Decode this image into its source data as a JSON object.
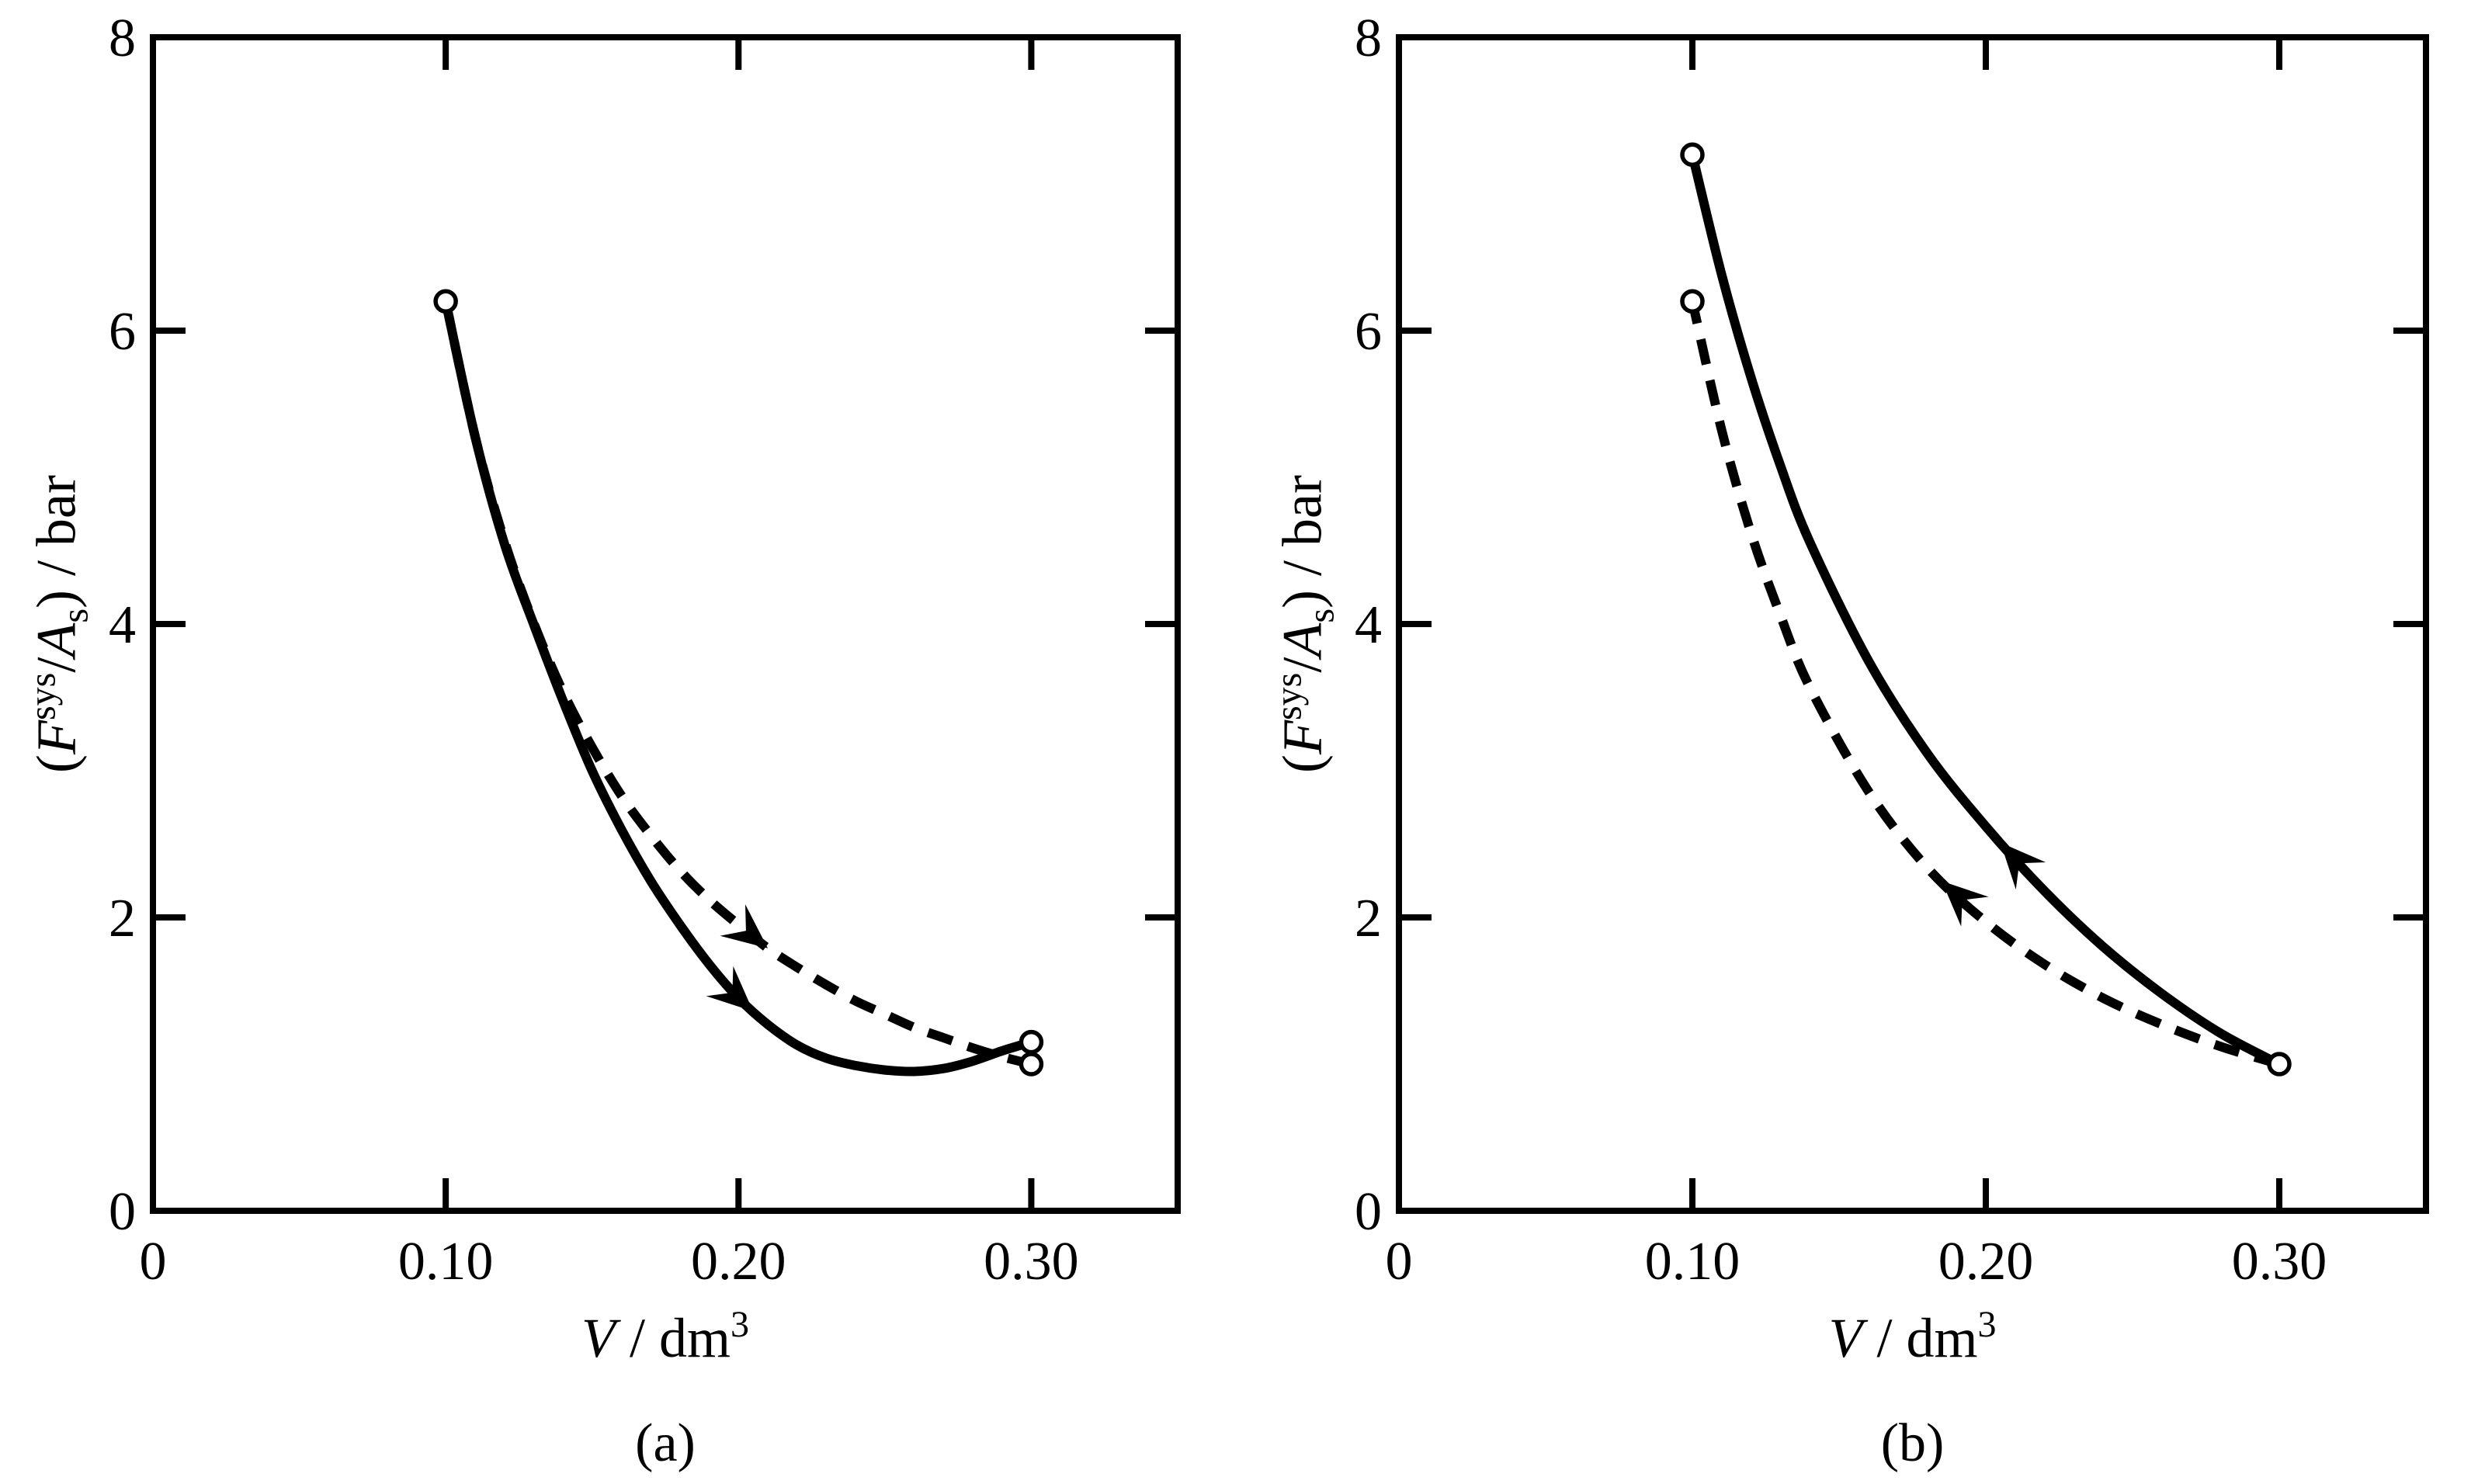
{
  "figure": {
    "background": "#ffffff",
    "ink": "#000000",
    "marker_style": "open-circle",
    "description_visible_text_only": true
  },
  "chart_data": [
    {
      "type": "line",
      "panel_label": "(a)",
      "xlabel_parts": [
        {
          "t": "V",
          "s": "i"
        },
        {
          "t": " / dm",
          "s": "n"
        },
        {
          "t": "3",
          "s": "sup"
        }
      ],
      "ylabel_parts": [
        {
          "t": "(",
          "s": "n"
        },
        {
          "t": "F",
          "s": "i"
        },
        {
          "t": "sys",
          "s": "sup"
        },
        {
          "t": "/",
          "s": "n"
        },
        {
          "t": "A",
          "s": "i"
        },
        {
          "t": "s",
          "s": "sub"
        },
        {
          "t": ") / bar",
          "s": "n"
        }
      ],
      "xlim": [
        0,
        0.35
      ],
      "ylim": [
        0,
        8
      ],
      "grid": false,
      "legend": "none",
      "xticks": [
        {
          "v": 0,
          "label": "0",
          "tick": false
        },
        {
          "v": 0.1,
          "label": "0.10",
          "tick": true
        },
        {
          "v": 0.2,
          "label": "0.20",
          "tick": true
        },
        {
          "v": 0.3,
          "label": "0.30",
          "tick": true
        }
      ],
      "yticks": [
        {
          "v": 0,
          "label": "0",
          "tick": false
        },
        {
          "v": 2,
          "label": "2",
          "tick": true
        },
        {
          "v": 4,
          "label": "4",
          "tick": true
        },
        {
          "v": 6,
          "label": "6",
          "tick": true
        },
        {
          "v": 8,
          "label": "8",
          "tick": false
        }
      ],
      "series": [
        {
          "name": "solid-path",
          "style": "solid",
          "arrow_v": 0.205,
          "x": [
            0.1,
            0.11,
            0.12,
            0.13,
            0.14,
            0.15,
            0.16,
            0.17,
            0.18,
            0.19,
            0.2,
            0.21,
            0.22,
            0.23,
            0.24,
            0.25,
            0.26,
            0.27,
            0.28,
            0.29,
            0.3
          ],
          "y": [
            6.2,
            5.28,
            4.55,
            4.0,
            3.48,
            3.0,
            2.6,
            2.25,
            1.95,
            1.68,
            1.45,
            1.27,
            1.13,
            1.04,
            0.99,
            0.96,
            0.95,
            0.97,
            1.02,
            1.09,
            1.15
          ]
        },
        {
          "name": "dashed-path",
          "style": "dashed",
          "arrow_v": 0.21,
          "x": [
            0.1,
            0.11,
            0.12,
            0.13,
            0.14,
            0.15,
            0.16,
            0.17,
            0.18,
            0.19,
            0.2,
            0.21,
            0.22,
            0.23,
            0.24,
            0.25,
            0.26,
            0.27,
            0.28,
            0.29,
            0.3
          ],
          "y": [
            6.2,
            5.28,
            4.57,
            4.01,
            3.54,
            3.16,
            2.83,
            2.56,
            2.32,
            2.12,
            1.95,
            1.79,
            1.66,
            1.54,
            1.43,
            1.34,
            1.25,
            1.18,
            1.11,
            1.05,
            1.0
          ]
        }
      ],
      "markers": [
        {
          "x": 0.1,
          "y": 6.2
        },
        {
          "x": 0.3,
          "y": 1.15
        },
        {
          "x": 0.3,
          "y": 1.0
        }
      ]
    },
    {
      "type": "line",
      "panel_label": "(b)",
      "xlabel_parts": [
        {
          "t": "V",
          "s": "i"
        },
        {
          "t": " / dm",
          "s": "n"
        },
        {
          "t": "3",
          "s": "sup"
        }
      ],
      "ylabel_parts": [
        {
          "t": "(",
          "s": "n"
        },
        {
          "t": "F",
          "s": "i"
        },
        {
          "t": "sys",
          "s": "sup"
        },
        {
          "t": "/",
          "s": "n"
        },
        {
          "t": "A",
          "s": "i"
        },
        {
          "t": "s",
          "s": "sub"
        },
        {
          "t": ") / bar",
          "s": "n"
        }
      ],
      "xlim": [
        0,
        0.35
      ],
      "ylim": [
        0,
        8
      ],
      "grid": false,
      "legend": "none",
      "xticks": [
        {
          "v": 0,
          "label": "0",
          "tick": false
        },
        {
          "v": 0.1,
          "label": "0.10",
          "tick": true
        },
        {
          "v": 0.2,
          "label": "0.20",
          "tick": true
        },
        {
          "v": 0.3,
          "label": "0.30",
          "tick": true
        }
      ],
      "yticks": [
        {
          "v": 0,
          "label": "0",
          "tick": false
        },
        {
          "v": 2,
          "label": "2",
          "tick": true
        },
        {
          "v": 4,
          "label": "4",
          "tick": true
        },
        {
          "v": 6,
          "label": "6",
          "tick": true
        },
        {
          "v": 8,
          "label": "8",
          "tick": false
        }
      ],
      "series": [
        {
          "name": "solid-path",
          "style": "solid",
          "arrow_v": 0.205,
          "x": [
            0.3,
            0.28,
            0.26,
            0.24,
            0.22,
            0.2,
            0.18,
            0.16,
            0.14,
            0.13,
            0.12,
            0.11,
            0.1
          ],
          "y": [
            1.0,
            1.21,
            1.48,
            1.8,
            2.18,
            2.62,
            3.12,
            3.75,
            4.56,
            5.08,
            5.68,
            6.38,
            7.2
          ]
        },
        {
          "name": "dashed-path",
          "style": "dashed",
          "arrow_v": 0.185,
          "x": [
            0.3,
            0.28,
            0.26,
            0.24,
            0.22,
            0.2,
            0.18,
            0.16,
            0.14,
            0.13,
            0.12,
            0.11,
            0.1
          ],
          "y": [
            1.0,
            1.12,
            1.27,
            1.45,
            1.68,
            1.97,
            2.34,
            2.86,
            3.57,
            4.06,
            4.62,
            5.32,
            6.2
          ]
        }
      ],
      "markers": [
        {
          "x": 0.1,
          "y": 7.2
        },
        {
          "x": 0.1,
          "y": 6.2
        },
        {
          "x": 0.3,
          "y": 1.0
        }
      ]
    }
  ]
}
